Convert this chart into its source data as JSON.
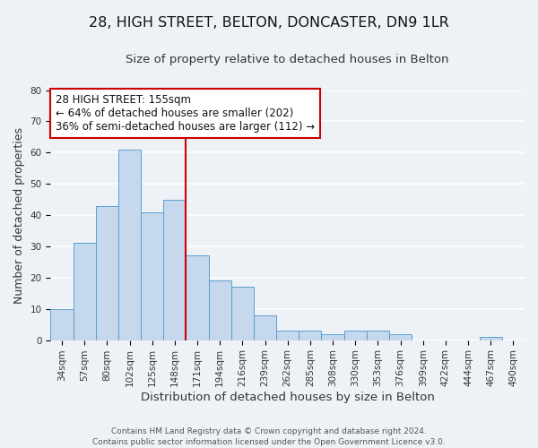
{
  "title": "28, HIGH STREET, BELTON, DONCASTER, DN9 1LR",
  "subtitle": "Size of property relative to detached houses in Belton",
  "xlabel": "Distribution of detached houses by size in Belton",
  "ylabel": "Number of detached properties",
  "bar_labels": [
    "34sqm",
    "57sqm",
    "80sqm",
    "102sqm",
    "125sqm",
    "148sqm",
    "171sqm",
    "194sqm",
    "216sqm",
    "239sqm",
    "262sqm",
    "285sqm",
    "308sqm",
    "330sqm",
    "353sqm",
    "376sqm",
    "399sqm",
    "422sqm",
    "444sqm",
    "467sqm",
    "490sqm"
  ],
  "bar_values": [
    10,
    31,
    43,
    61,
    41,
    45,
    27,
    19,
    17,
    8,
    3,
    3,
    2,
    3,
    3,
    2,
    0,
    0,
    0,
    1,
    0
  ],
  "bar_color": "#c5d8ed",
  "bar_edge_color": "#5a9fd4",
  "vline_x": 5.5,
  "vline_color": "#cc0000",
  "annotation_text": "28 HIGH STREET: 155sqm\n← 64% of detached houses are smaller (202)\n36% of semi-detached houses are larger (112) →",
  "ylim": [
    0,
    80
  ],
  "yticks": [
    0,
    10,
    20,
    30,
    40,
    50,
    60,
    70,
    80
  ],
  "footnote": "Contains HM Land Registry data © Crown copyright and database right 2024.\nContains public sector information licensed under the Open Government Licence v3.0.",
  "background_color": "#eef2f7",
  "grid_color": "#ffffff",
  "title_fontsize": 11.5,
  "subtitle_fontsize": 9.5,
  "xlabel_fontsize": 9.5,
  "ylabel_fontsize": 9,
  "tick_fontsize": 7.5,
  "annotation_fontsize": 8.5,
  "footnote_fontsize": 6.5
}
